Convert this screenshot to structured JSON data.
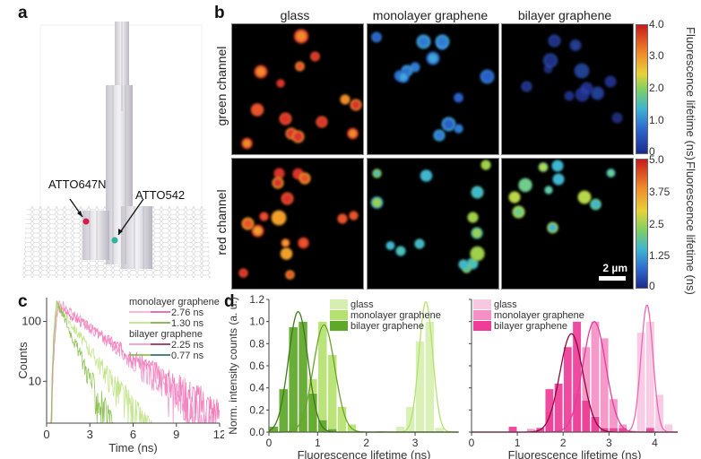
{
  "panels": {
    "a": {
      "label": "a",
      "annotations": [
        "ATTO647N",
        "ATTO542"
      ],
      "dye_colors": {
        "ATTO647N": "#d81b4a",
        "ATTO542": "#2bb3a0"
      }
    },
    "b": {
      "label": "b",
      "columns": [
        "glass",
        "monolayer graphene",
        "bilayer graphene"
      ],
      "rows": [
        "green channel",
        "red channel"
      ],
      "colorbars": [
        {
          "label": "Fluorescence lifetime (ns)",
          "ticks": [
            "4.0",
            "3.0",
            "2.0",
            "1.0",
            "0"
          ],
          "range": [
            0,
            4.0
          ]
        },
        {
          "label": "Fluorescence lifetime (ns)",
          "ticks": [
            "5.0",
            "3.75",
            "2.5",
            "1.25",
            "0"
          ],
          "range": [
            0,
            5.0
          ]
        }
      ],
      "scalebar": "2 µm"
    },
    "c": {
      "label": "c"
    },
    "d": {
      "label": "d"
    }
  },
  "chart_data": [
    {
      "type": "line",
      "panel": "c",
      "title": "",
      "xlabel": "Time (ns)",
      "ylabel": "Counts",
      "xlim": [
        0,
        12
      ],
      "ylim": [
        2,
        250
      ],
      "yscale": "log",
      "xticks": [
        "0",
        "3",
        "6",
        "9",
        "12"
      ],
      "yticks": [
        "10",
        "100"
      ],
      "legend": {
        "placement": "top-right",
        "groups": [
          {
            "title": "monolayer graphene",
            "entries": [
              {
                "label": "2.76 ns",
                "color": "#e0409a",
                "light": "#f5a0cc"
              },
              {
                "label": "1.30 ns",
                "color": "#6aa22a",
                "light": "#b8e07a"
              }
            ]
          },
          {
            "title": "bilayer graphene",
            "entries": [
              {
                "label": "2.25 ns",
                "color": "#8b0a3a",
                "light": "#f08ac4"
              },
              {
                "label": "0.77 ns",
                "color": "#0f5e54",
                "light": "#7cba3a"
              }
            ]
          }
        ]
      },
      "series": [
        {
          "name": "monolayer graphene ATTO647N",
          "lifetime": 2.76,
          "peak_t": 0.8,
          "peak": 175,
          "color": "#ee68b0",
          "fit": "#e0409a"
        },
        {
          "name": "monolayer graphene ATTO542",
          "lifetime": 1.3,
          "peak_t": 0.75,
          "peak": 190,
          "color": "#b8e07a",
          "fit": "#6aa22a"
        },
        {
          "name": "bilayer graphene ATTO647N",
          "lifetime": 2.25,
          "peak_t": 0.85,
          "peak": 210,
          "color": "#f08ac4",
          "fit": "#8b0a3a"
        },
        {
          "name": "bilayer graphene ATTO542",
          "lifetime": 0.77,
          "peak_t": 0.7,
          "peak": 230,
          "color": "#7cba3a",
          "fit": "#0f5e54"
        }
      ]
    },
    {
      "type": "bar",
      "panel": "d-left",
      "xlabel": "Fluorescence lifetime (ns)",
      "ylabel": "Norm. intensity counts (a. u.)",
      "xlim": [
        0,
        3.9
      ],
      "ylim": [
        0,
        1.2
      ],
      "xticks": [
        "0",
        "1",
        "2",
        "3"
      ],
      "yticks": [
        "0.0",
        "0.2",
        "0.4",
        "0.6",
        "0.8",
        "1.0",
        "1.2"
      ],
      "legend": {
        "placement": "top-right",
        "entries": [
          "glass",
          "monolayer graphene",
          "bilayer graphene"
        ]
      },
      "bin_width": 0.2,
      "series": [
        {
          "name": "glass",
          "color": "#d6efb0",
          "bins": [
            2.7,
            2.9,
            3.1,
            3.3,
            3.5
          ],
          "values": [
            0.05,
            0.23,
            0.82,
            1.0,
            0.04
          ],
          "fit": {
            "mu": 3.22,
            "sigma": 0.14,
            "amp": 1.18
          }
        },
        {
          "name": "monolayer graphene",
          "color": "#b5e26e",
          "bins": [
            0.5,
            0.7,
            0.9,
            1.1,
            1.3,
            1.5,
            1.7,
            2.3
          ],
          "values": [
            0.08,
            0.18,
            0.48,
            1.0,
            0.7,
            0.23,
            0.07,
            0.01
          ],
          "fit": {
            "mu": 1.13,
            "sigma": 0.22,
            "amp": 0.97
          }
        },
        {
          "name": "bilayer graphene",
          "color": "#5ea82a",
          "bins": [
            0.1,
            0.3,
            0.5,
            0.7,
            0.9,
            1.1,
            1.3
          ],
          "values": [
            0.05,
            0.39,
            0.95,
            1.0,
            0.35,
            0.11,
            0.03
          ],
          "fit": {
            "mu": 0.6,
            "sigma": 0.2,
            "amp": 1.09
          }
        }
      ]
    },
    {
      "type": "bar",
      "panel": "d-right",
      "xlabel": "Fluorescence lifetime (ns)",
      "ylabel": "",
      "xlim": [
        0,
        4.5
      ],
      "ylim": [
        0,
        1.2
      ],
      "xticks": [
        "0",
        "1",
        "2",
        "3",
        "4"
      ],
      "legend": {
        "placement": "top-left",
        "entries": [
          "glass",
          "monolayer graphene",
          "bilayer graphene"
        ]
      },
      "bin_width": 0.2,
      "series": [
        {
          "name": "glass",
          "color": "#f8c8e2",
          "bins": [
            3.1,
            3.3,
            3.5,
            3.7,
            3.9,
            4.1,
            4.3
          ],
          "values": [
            0.02,
            0.02,
            0.02,
            0.9,
            1.0,
            0.34,
            0.07
          ],
          "fit": {
            "mu": 3.83,
            "sigma": 0.13,
            "amp": 1.15
          }
        },
        {
          "name": "monolayer graphene",
          "color": "#f590c6",
          "bins": [
            1.3,
            1.7,
            1.9,
            2.3,
            2.5,
            2.7,
            2.9,
            3.1,
            3.3
          ],
          "values": [
            0.03,
            0.18,
            0.02,
            0.35,
            0.77,
            1.0,
            0.85,
            0.3,
            0.07
          ],
          "fit": {
            "mu": 2.68,
            "sigma": 0.25,
            "amp": 1.0
          }
        },
        {
          "name": "bilayer graphene",
          "color": "#ee3c98",
          "bins": [
            0.9,
            1.5,
            1.7,
            1.9,
            2.1,
            2.3,
            2.5,
            2.7,
            2.9,
            3.1,
            3.3,
            3.9
          ],
          "values": [
            0.05,
            0.04,
            0.39,
            0.44,
            0.77,
            1.0,
            0.29,
            0.14,
            0.04,
            0.04,
            0.04,
            0.04
          ],
          "fit": {
            "mu": 2.18,
            "sigma": 0.25,
            "amp": 0.89
          }
        }
      ]
    }
  ]
}
